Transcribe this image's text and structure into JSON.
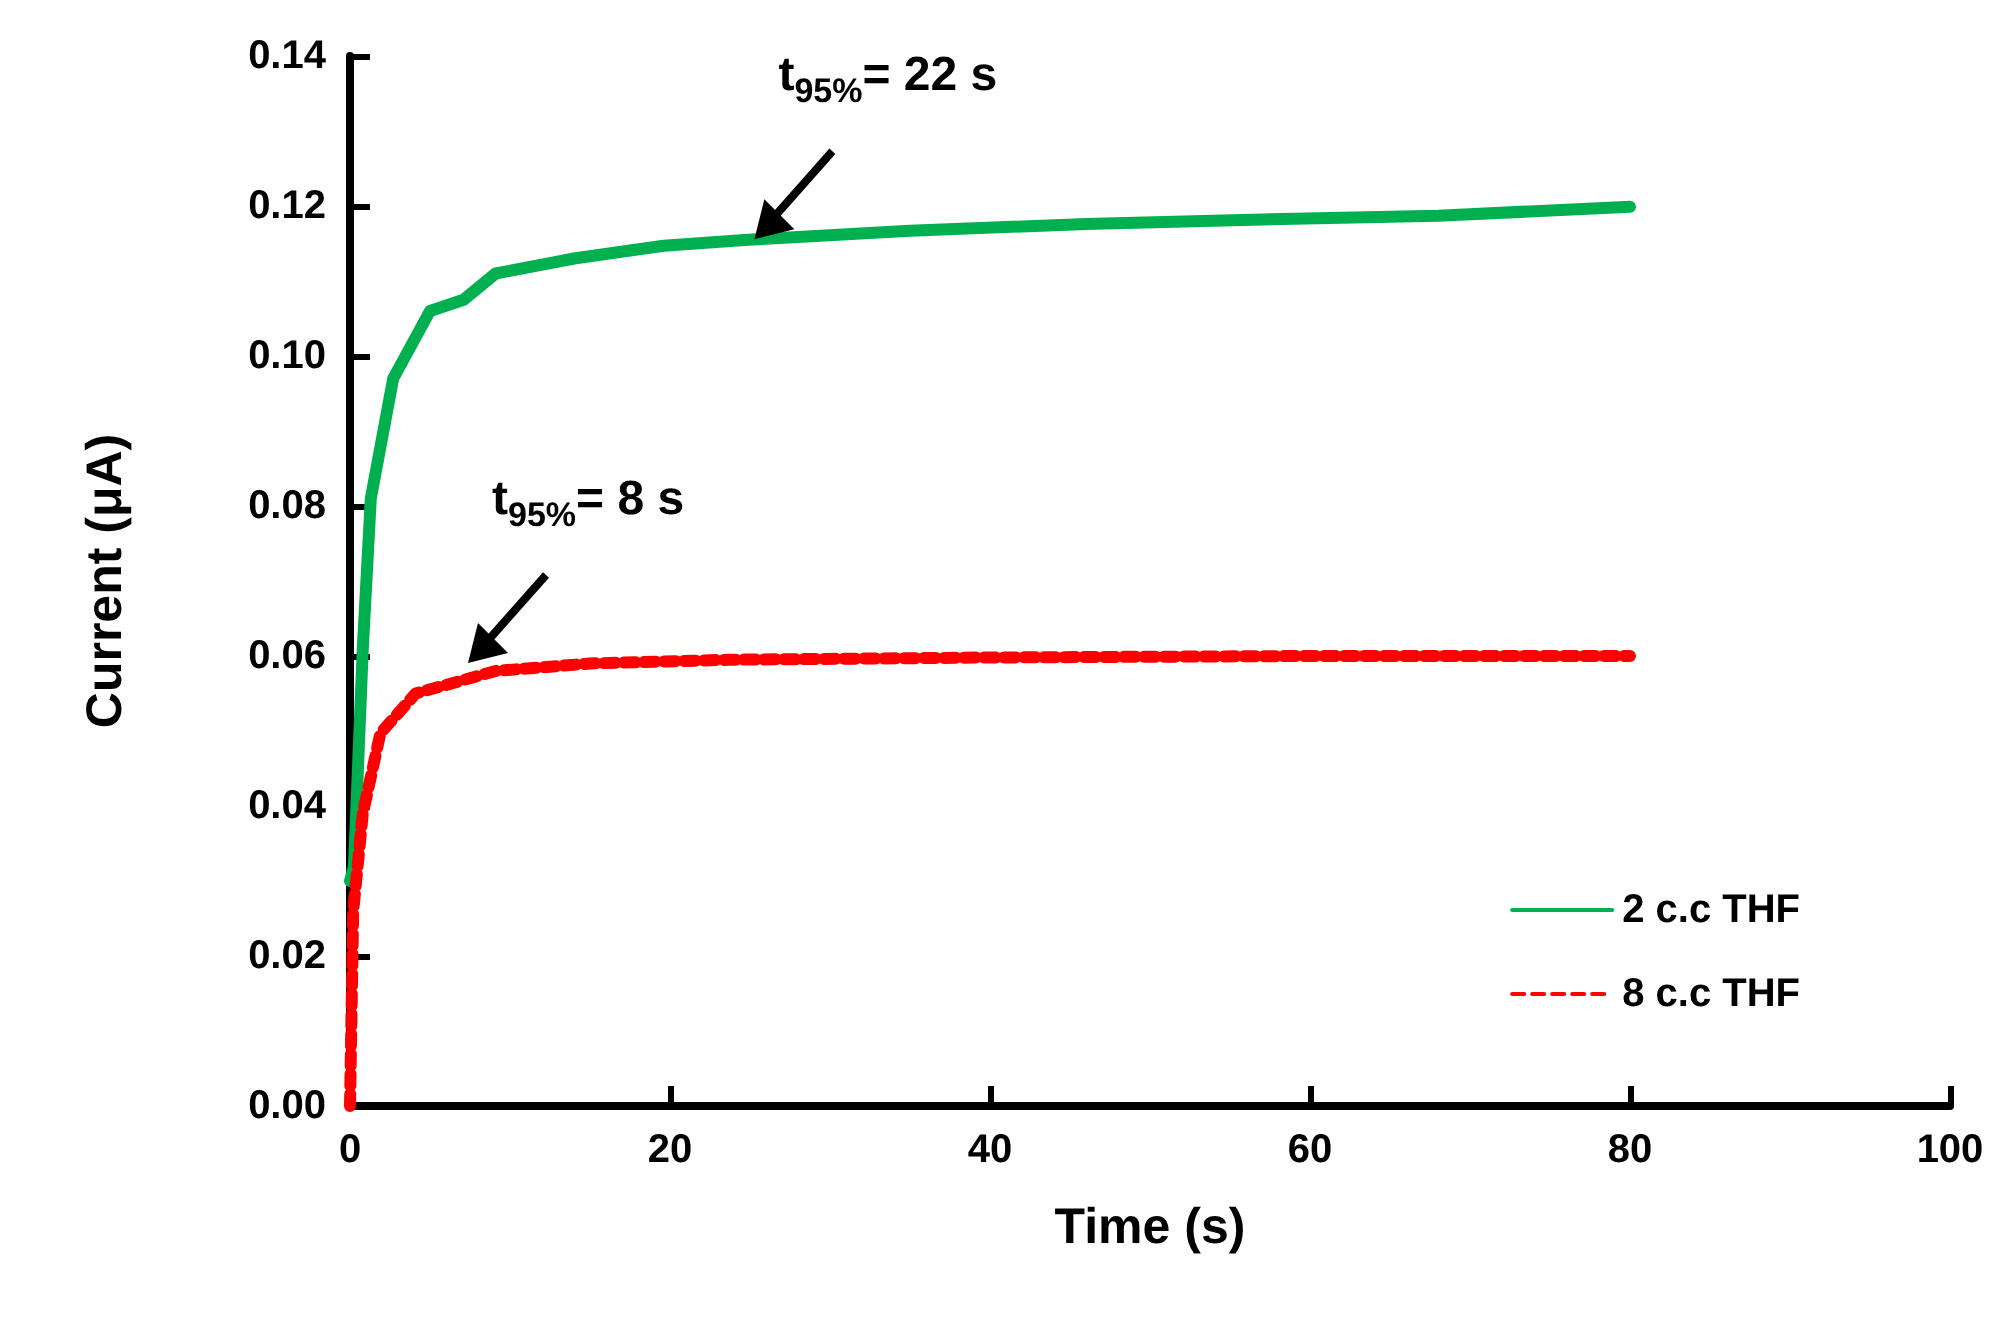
{
  "chart_data": {
    "type": "line",
    "xlabel": "Time (s)",
    "ylabel": "Current (μA)",
    "xlim": [
      0,
      100
    ],
    "xticks": [
      0,
      20,
      40,
      60,
      80,
      100
    ],
    "ylim": [
      0,
      0.14
    ],
    "yticks": [
      {
        "value": 0,
        "label": "0.00"
      },
      0.02,
      0.04,
      0.06,
      0.08,
      {
        "value": 0.1,
        "label": "0.10"
      },
      0.12,
      0.14
    ],
    "grid": false,
    "legend": "right",
    "marker": "none",
    "annotations": [
      {
        "text": "t$_{95%}$= 22 s",
        "x": 24.9,
        "y": 0.1145
      },
      {
        "text": "t$_{95%}$= 8 s",
        "x": 7,
        "y": 0.058
      }
    ],
    "series": [
      {
        "name": "2 c.c THF",
        "color": "#00b050",
        "line_style": "solid",
        "x": [
          0,
          0.25,
          0.8,
          1.3,
          2.7,
          5,
          7.1,
          9.1,
          14,
          19.6,
          24.9,
          35,
          46,
          57,
          68,
          80
        ],
        "values": [
          0.03,
          0.032,
          0.061,
          0.081,
          0.097,
          0.106,
          0.1075,
          0.111,
          0.113,
          0.1147,
          0.1155,
          0.1167,
          0.1176,
          0.1182,
          0.1187,
          0.1199
        ]
      },
      {
        "name": "8 c.c THF",
        "color": "#ff0000",
        "line_style": "dashed",
        "x": [
          0,
          0.2,
          0.8,
          1.9,
          4.1,
          9.1,
          15,
          23.7,
          40,
          60,
          80
        ],
        "values": [
          0,
          0.026,
          0.039,
          0.0497,
          0.055,
          0.058,
          0.059,
          0.0595,
          0.0598,
          0.06,
          0.06
        ]
      }
    ]
  }
}
